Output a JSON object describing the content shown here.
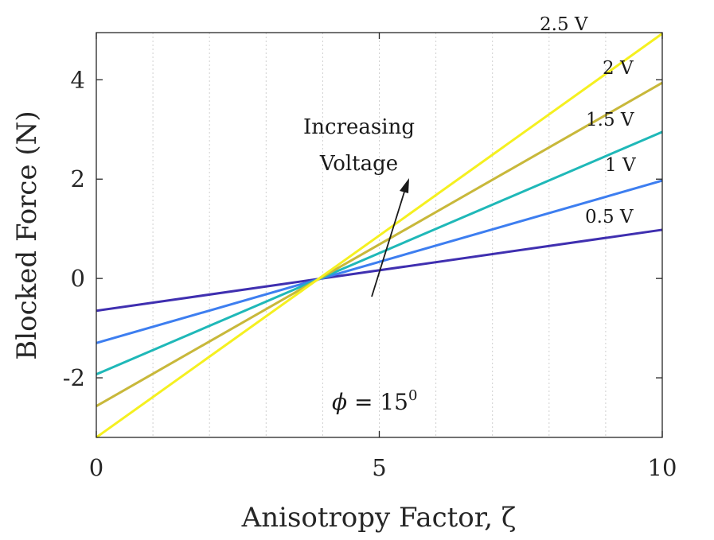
{
  "chart_data": {
    "type": "line",
    "title": "",
    "xlabel": "Anisotropy Factor, ζ",
    "ylabel": "Blocked Force (N)",
    "xlim": [
      0,
      10
    ],
    "ylim": [
      -3.2,
      4.95
    ],
    "xticks": [
      0,
      5,
      10
    ],
    "xtick_labels": [
      "0",
      "5",
      "10"
    ],
    "yticks": [
      -2,
      0,
      2,
      4
    ],
    "ytick_labels": [
      "-2",
      "0",
      "2",
      "4"
    ],
    "x_minor_grid": [
      1,
      2,
      3,
      4,
      5,
      6,
      7,
      8,
      9
    ],
    "grid": "vertical dotted",
    "series": [
      {
        "name": "0.5 V",
        "label": "0.5 V",
        "color": "#3f2fb0",
        "x": [
          0,
          10
        ],
        "y": [
          -0.65,
          0.98
        ]
      },
      {
        "name": "1 V",
        "label": "1 V",
        "color": "#3d7ef0",
        "x": [
          0,
          10
        ],
        "y": [
          -1.3,
          1.97
        ]
      },
      {
        "name": "1.5 V",
        "label": "1.5 V",
        "color": "#1fb8b8",
        "x": [
          0,
          10
        ],
        "y": [
          -1.93,
          2.95
        ]
      },
      {
        "name": "2 V",
        "label": "2 V",
        "color": "#c8b83a",
        "x": [
          0,
          10
        ],
        "y": [
          -2.57,
          3.94
        ]
      },
      {
        "name": "2.5 V",
        "label": "2.5 V",
        "color": "#f5f020",
        "x": [
          0,
          10
        ],
        "y": [
          -3.2,
          4.93
        ]
      }
    ],
    "annotations": {
      "arrow_text_line1": "Increasing",
      "arrow_text_line2": "Voltage",
      "phi_symbol": "ϕ",
      "phi_equals": " = 15",
      "phi_superscript": "0"
    }
  }
}
